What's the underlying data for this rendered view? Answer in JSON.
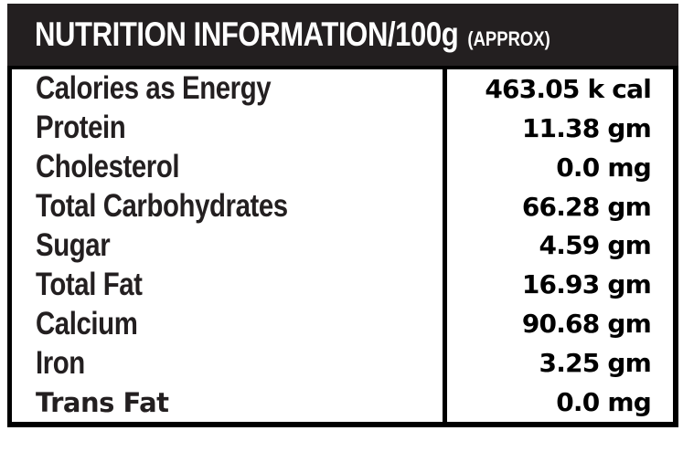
{
  "header": {
    "title": "NUTRITION INFORMATION/100g",
    "suffix": "(APPROX)"
  },
  "table": {
    "rows": [
      {
        "label": "Calories as Energy",
        "value": "463.05 k cal"
      },
      {
        "label": "Protein",
        "value": "11.38 gm"
      },
      {
        "label": "Cholesterol",
        "value": "0.0 mg"
      },
      {
        "label": "Total Carbohydrates",
        "value": "66.28 gm"
      },
      {
        "label": "Sugar",
        "value": "4.59 gm"
      },
      {
        "label": "Total Fat",
        "value": "16.93 gm"
      },
      {
        "label": "Calcium",
        "value": "90.68 gm"
      },
      {
        "label": "Iron",
        "value": "3.25 gm"
      },
      {
        "label": "Trans Fat",
        "value": "0.0 mg"
      }
    ]
  },
  "colors": {
    "header_bg": "#231f20",
    "border": "#000000",
    "label_text": "#231f20",
    "value_text": "#000000",
    "page_bg": "#ffffff",
    "header_text": "#ffffff"
  }
}
